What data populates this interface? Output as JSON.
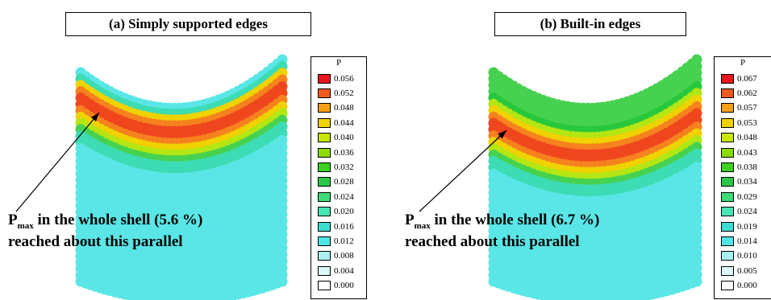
{
  "panels": [
    {
      "title": "(a) Simply supported edges",
      "legend_title": "P",
      "legend_values": [
        "0.056",
        "0.052",
        "0.048",
        "0.044",
        "0.040",
        "0.036",
        "0.032",
        "0.028",
        "0.024",
        "0.020",
        "0.016",
        "0.012",
        "0.008",
        "0.004",
        "0.000"
      ],
      "annotation": {
        "p_symbol": "P",
        "p_sub": "max",
        "line1_rest": " in the whole shell (5.6 %)",
        "line2": "reached about this parallel"
      }
    },
    {
      "title": "(b) Built-in edges",
      "legend_title": "P",
      "legend_values": [
        "0.067",
        "0.062",
        "0.057",
        "0.053",
        "0.048",
        "0.043",
        "0.038",
        "0.034",
        "0.029",
        "0.024",
        "0.019",
        "0.014",
        "0.010",
        "0.005",
        "0.000"
      ],
      "annotation": {
        "p_symbol": "P",
        "p_sub": "max",
        "line1_rest": " in the whole shell (6.7 %)",
        "line2": "reached about this parallel"
      }
    }
  ],
  "legend_colors": [
    "#e8141e",
    "#f05a1e",
    "#f5a014",
    "#f0d200",
    "#c8e600",
    "#8cdc00",
    "#3cd21e",
    "#28c846",
    "#3cdc78",
    "#46e6b4",
    "#3cdcd2",
    "#50e6e6",
    "#aaf0f0",
    "#dcf8f8",
    "#ffffff"
  ],
  "shell_colors": {
    "cyan": "#5ae6e6",
    "light_cyan": "#78ecec",
    "teal": "#3cdcb4",
    "green": "#46d250",
    "bright_green": "#28c83c",
    "yellow_green": "#b4e614",
    "yellow": "#f0d200",
    "orange": "#f5821e",
    "red_orange": "#f0461e"
  }
}
